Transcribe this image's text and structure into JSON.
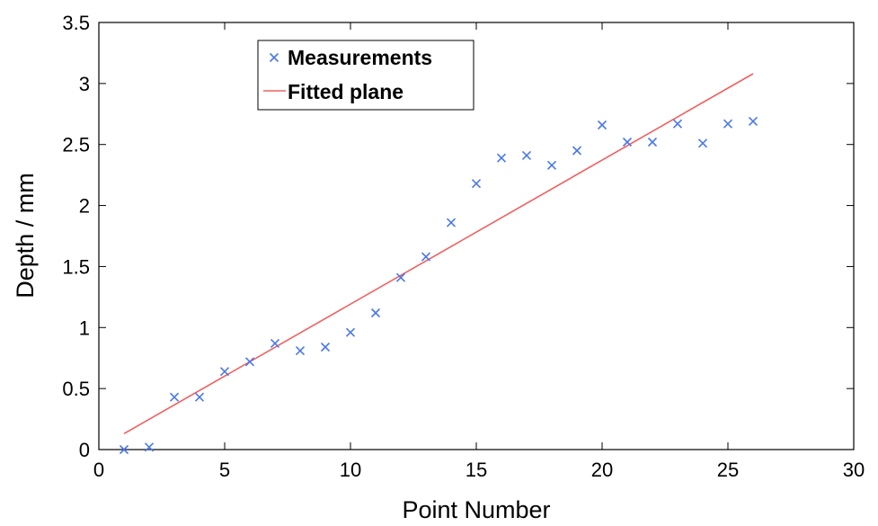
{
  "chart_data": {
    "type": "scatter",
    "xlabel": "Point Number",
    "ylabel": "Depth / mm",
    "xlim": [
      0,
      30
    ],
    "ylim": [
      0,
      3.5
    ],
    "xticks": [
      "0",
      "5",
      "10",
      "15",
      "20",
      "25",
      "30"
    ],
    "yticks": [
      "0",
      "0.5",
      "1",
      "1.5",
      "2",
      "2.5",
      "3",
      "3.5"
    ],
    "grid": false,
    "legend_position": "top-left",
    "series": [
      {
        "name": "Measurements",
        "kind": "scatter",
        "marker": "x",
        "color": "#4a78e8",
        "x": [
          1,
          2,
          3,
          4,
          5,
          6,
          7,
          8,
          9,
          10,
          11,
          12,
          13,
          14,
          15,
          16,
          17,
          18,
          19,
          20,
          21,
          22,
          23,
          24,
          25,
          26
        ],
        "y": [
          0.0,
          0.02,
          0.43,
          0.43,
          0.64,
          0.72,
          0.87,
          0.81,
          0.84,
          0.96,
          1.12,
          1.41,
          1.58,
          1.86,
          2.18,
          2.39,
          2.41,
          2.33,
          2.45,
          2.66,
          2.52,
          2.52,
          2.67,
          2.51,
          2.67,
          2.69
        ]
      },
      {
        "name": "Fitted plane",
        "kind": "line",
        "color": "#f06060",
        "x": [
          1,
          26
        ],
        "y": [
          0.13,
          3.08
        ]
      }
    ]
  }
}
